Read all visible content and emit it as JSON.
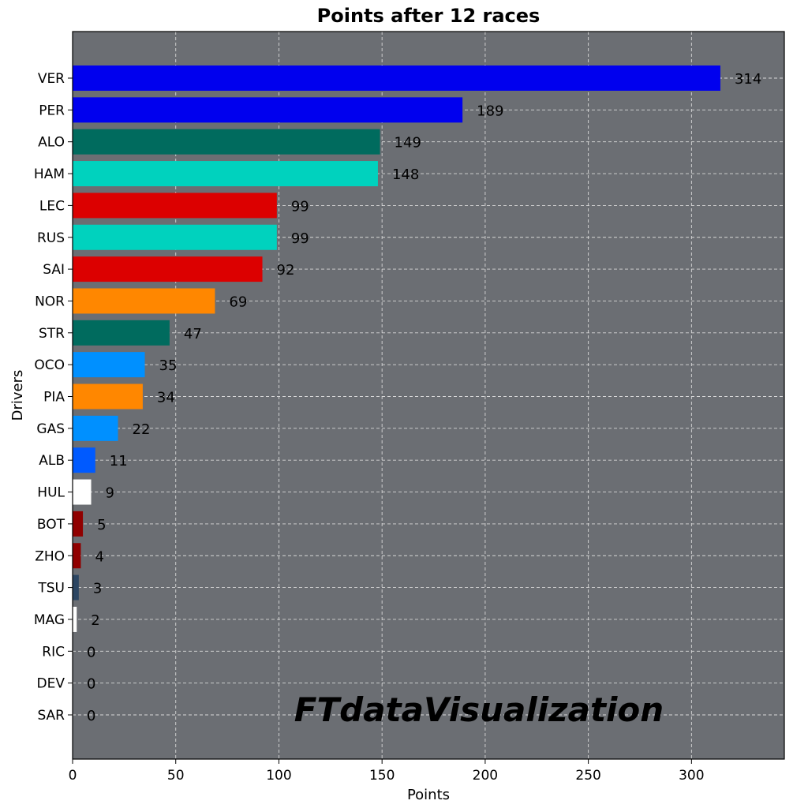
{
  "chart_data": {
    "type": "bar",
    "orientation": "horizontal",
    "title": "Points after 12 races",
    "xlabel": "Points",
    "ylabel": "Drivers",
    "xlim": [
      0,
      345
    ],
    "x_ticks": [
      0,
      50,
      100,
      150,
      200,
      250,
      300
    ],
    "grid": true,
    "background_color": "#6b6e73",
    "watermark": "FTdataVisualization",
    "categories": [
      "VER",
      "PER",
      "ALO",
      "HAM",
      "LEC",
      "RUS",
      "SAI",
      "NOR",
      "STR",
      "OCO",
      "PIA",
      "GAS",
      "ALB",
      "HUL",
      "BOT",
      "ZHO",
      "TSU",
      "MAG",
      "RIC",
      "DEV",
      "SAR"
    ],
    "values": [
      314,
      189,
      149,
      148,
      99,
      99,
      92,
      69,
      47,
      35,
      34,
      22,
      11,
      9,
      5,
      4,
      3,
      2,
      0,
      0,
      0
    ],
    "colors": [
      "#0000ee",
      "#0000ee",
      "#006b5e",
      "#00d2be",
      "#dc0000",
      "#00d2be",
      "#dc0000",
      "#ff8700",
      "#006b5e",
      "#0090ff",
      "#ff8700",
      "#0090ff",
      "#005aff",
      "#ffffff",
      "#900000",
      "#900000",
      "#2b4562",
      "#ffffff",
      "#2b4562",
      "#2b4562",
      "#005aff"
    ]
  }
}
